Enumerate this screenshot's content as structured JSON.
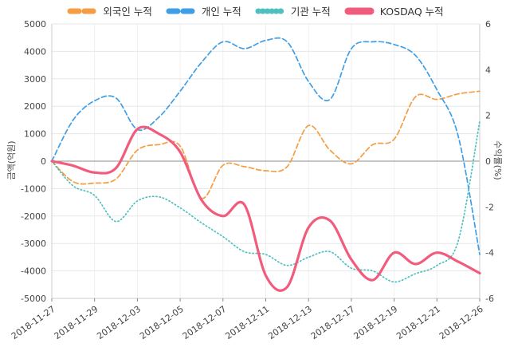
{
  "legend": {
    "items": [
      {
        "id": "foreign",
        "label": "외국인 누적",
        "color": "#F49D42",
        "swatch_dash": "11 7"
      },
      {
        "id": "individual",
        "label": "개인 누적",
        "color": "#3F9EE5",
        "swatch_dash": "11 7"
      },
      {
        "id": "institution",
        "label": "기관 누적",
        "color": "#4FBFBF",
        "swatch_dash": "0.6 5"
      },
      {
        "id": "kosdaq",
        "label": "KOSDAQ 누적",
        "color": "#F25C7C",
        "swatch_dash": "100"
      }
    ]
  },
  "axes": {
    "left_title": "금액(억원)",
    "right_title": "수익률(%)"
  },
  "chart_data": {
    "type": "line",
    "title": "",
    "x": [
      "2018-11-27",
      "2018-11-28",
      "2018-11-29",
      "2018-11-30",
      "2018-12-03",
      "2018-12-04",
      "2018-12-05",
      "2018-12-06",
      "2018-12-07",
      "2018-12-10",
      "2018-12-11",
      "2018-12-12",
      "2018-12-13",
      "2018-12-14",
      "2018-12-17",
      "2018-12-18",
      "2018-12-19",
      "2018-12-20",
      "2018-12-21",
      "2018-12-24",
      "2018-12-26"
    ],
    "x_tick_indices": [
      0,
      2,
      4,
      6,
      8,
      10,
      12,
      14,
      16,
      18,
      20
    ],
    "left_axis": {
      "label": "금액(억원)",
      "ticks": [
        5000,
        4000,
        3000,
        2000,
        1000,
        0,
        -1000,
        -2000,
        -3000,
        -4000,
        -5000
      ],
      "lim": [
        -5000,
        5000
      ]
    },
    "right_axis": {
      "label": "수익률(%)",
      "ticks": [
        6,
        4,
        2,
        0,
        -2,
        -4,
        -6
      ],
      "lim": [
        -6,
        6
      ]
    },
    "grid": true,
    "legend_position": "top",
    "series": [
      {
        "id": "foreign",
        "name": "외국인 누적",
        "axis": "left",
        "style": "dashed",
        "color": "#F49D42",
        "values": [
          0,
          -750,
          -800,
          -650,
          400,
          600,
          550,
          -1350,
          -150,
          -200,
          -350,
          -200,
          1300,
          400,
          -100,
          600,
          800,
          2350,
          2250,
          2450,
          2550
        ]
      },
      {
        "id": "individual",
        "name": "개인 누적",
        "axis": "left",
        "style": "dashed",
        "color": "#3F9EE5",
        "values": [
          0,
          1500,
          2200,
          2300,
          1150,
          1600,
          2550,
          3600,
          4350,
          4100,
          4400,
          4350,
          2900,
          2250,
          4100,
          4350,
          4250,
          3850,
          2600,
          900,
          -3400
        ]
      },
      {
        "id": "institution",
        "name": "기관 누적",
        "axis": "left",
        "style": "dotted",
        "color": "#4FBFBF",
        "values": [
          0,
          -900,
          -1250,
          -2200,
          -1450,
          -1300,
          -1700,
          -2250,
          -2750,
          -3300,
          -3400,
          -3800,
          -3500,
          -3300,
          -3900,
          -4000,
          -4400,
          -4100,
          -3800,
          -2900,
          1450
        ]
      },
      {
        "id": "kosdaq",
        "name": "KOSDAQ 누적",
        "axis": "right",
        "style": "solid",
        "color": "#F25C7C",
        "values": [
          0,
          -0.2,
          -0.5,
          -0.3,
          1.4,
          1.2,
          0.4,
          -1.7,
          -2.4,
          -1.9,
          -5.0,
          -5.5,
          -2.9,
          -2.6,
          -4.3,
          -5.2,
          -4.0,
          -4.5,
          -4.0,
          -4.4,
          -4.9
        ]
      }
    ]
  }
}
